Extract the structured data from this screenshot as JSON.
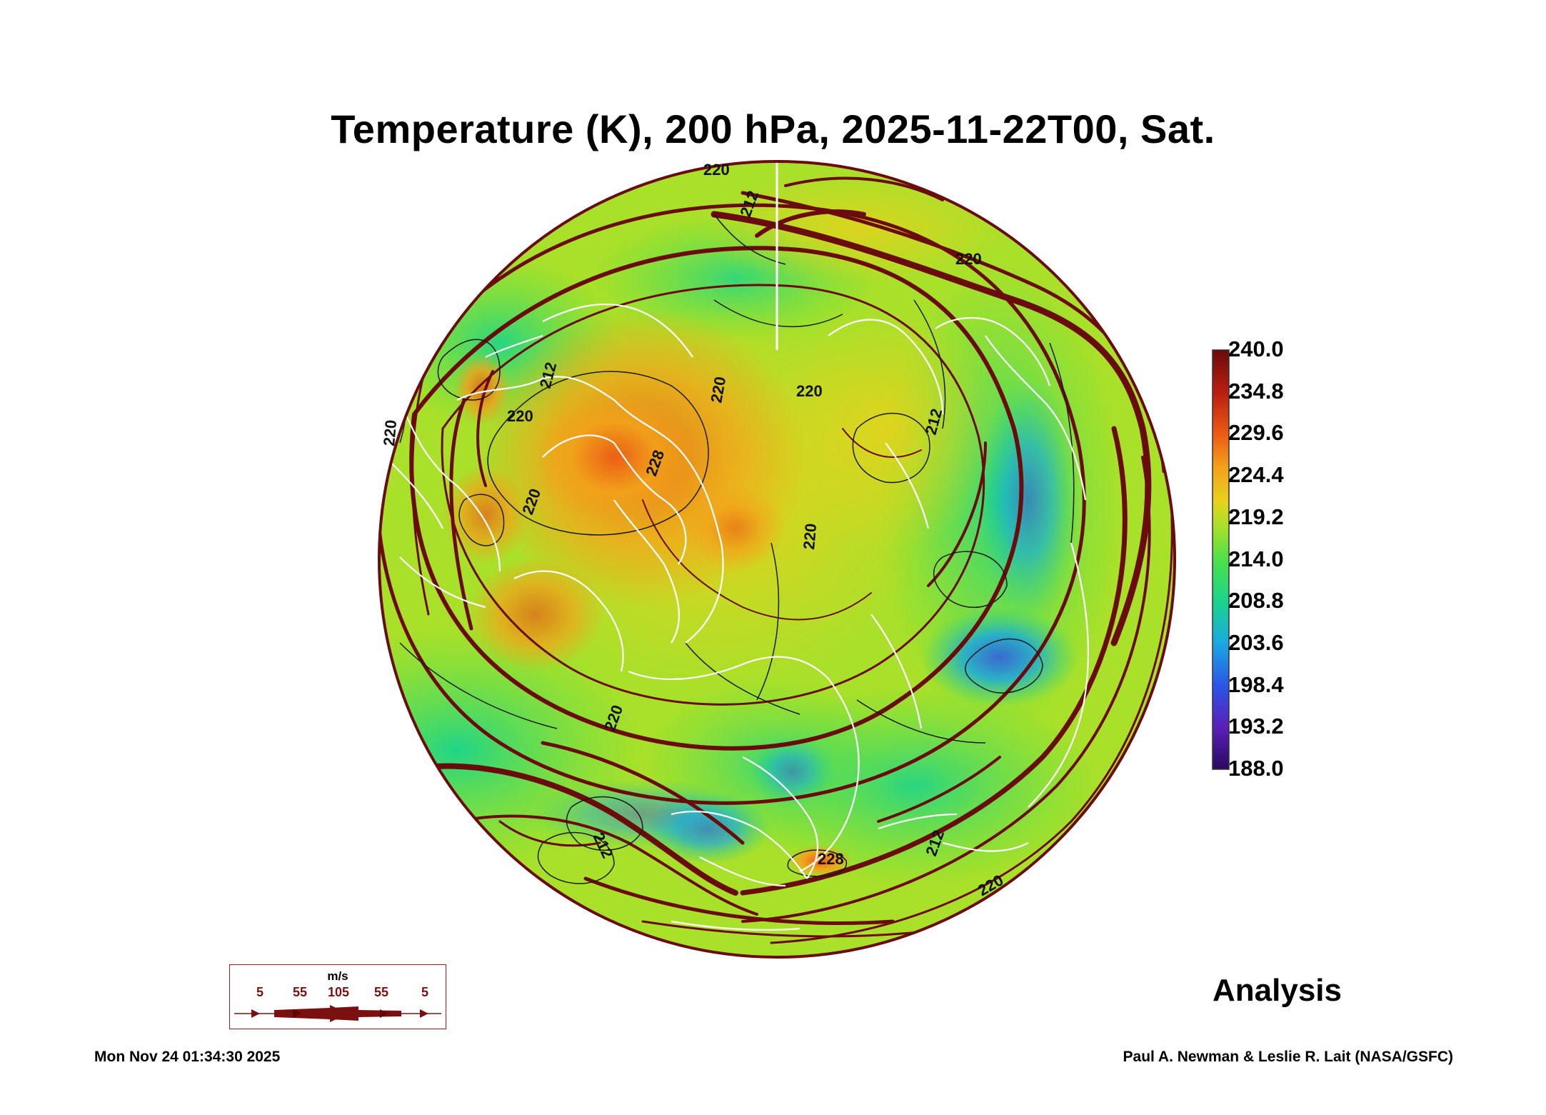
{
  "title": "Temperature (K), 200 hPa, 2025-11-22T00, Sat.",
  "colorbar": {
    "labels": [
      "240.0",
      "234.8",
      "229.6",
      "224.4",
      "219.2",
      "214.0",
      "208.8",
      "203.6",
      "198.4",
      "193.2",
      "188.0"
    ],
    "min": 188.0,
    "max": 240.0,
    "colors": [
      "#2a0a5e",
      "#5a1fb8",
      "#2b55e8",
      "#1aa8e0",
      "#19d48c",
      "#4ee04a",
      "#a8e02a",
      "#e8d21c",
      "#f2a21a",
      "#ec5a14",
      "#b81e10",
      "#6a0c0c"
    ]
  },
  "contour_labels": [
    "220",
    "220",
    "212",
    "220",
    "220",
    "212",
    "220",
    "228",
    "220",
    "220",
    "220",
    "212",
    "212",
    "220",
    "212",
    "220",
    "228"
  ],
  "wind_key": {
    "unit": "m/s",
    "values": [
      "5",
      "55",
      "105",
      "55",
      "5"
    ]
  },
  "analysis_label": "Analysis",
  "timestamp": "Mon Nov 24 01:34:30 2025",
  "credit": "Paul A. Newman & Leslie R. Lait (NASA/GSFC)"
}
